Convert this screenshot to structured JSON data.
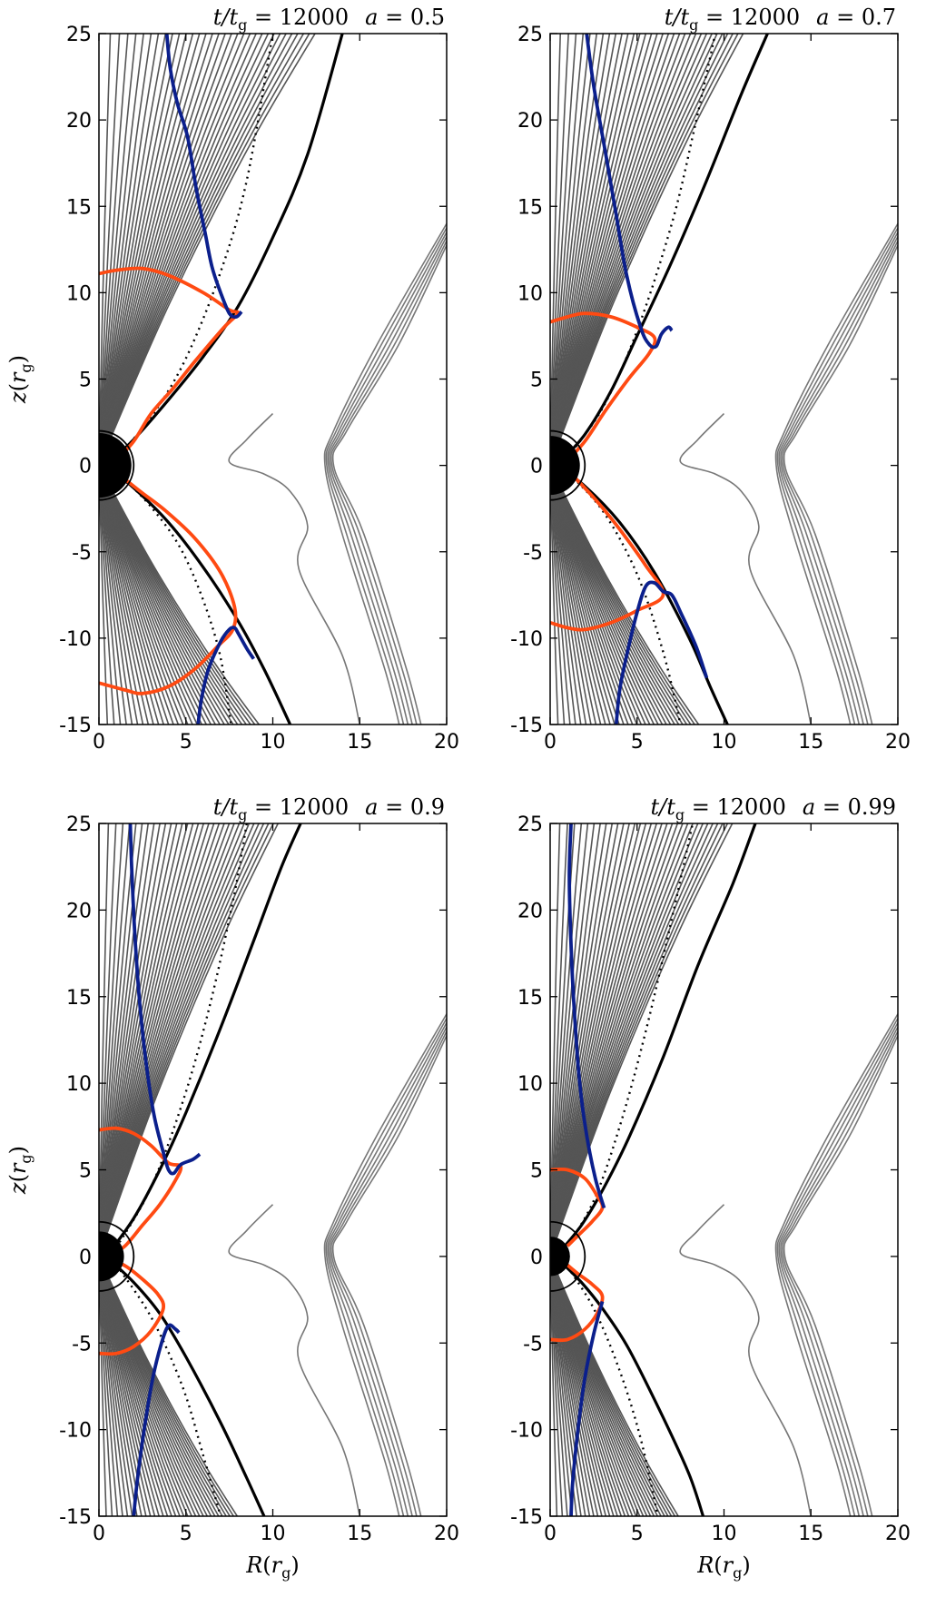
{
  "chart_data": [
    {
      "type": "line",
      "title": "t/t_g = 12000   a = 0.5",
      "time": "12000",
      "spin": "0.5",
      "xlabel": "R(r_g)",
      "ylabel": "z(r_g)",
      "xlim": [
        0,
        20
      ],
      "ylim": [
        -15,
        25
      ],
      "xticks": [
        0,
        5,
        10,
        15,
        20
      ],
      "yticks": [
        -15,
        -10,
        -5,
        0,
        5,
        10,
        15,
        20,
        25
      ],
      "grid": false,
      "horizon_radius": 1.87,
      "jet_boundary": {
        "upper": [
          [
            0.5,
            0.1
          ],
          [
            2,
            1.5
          ],
          [
            4,
            3.8
          ],
          [
            6,
            6.3
          ],
          [
            8,
            9.2
          ],
          [
            10,
            13.2
          ],
          [
            12,
            18
          ],
          [
            14,
            25
          ]
        ],
        "lower": [
          [
            0.5,
            -0.1
          ],
          [
            2,
            -1.3
          ],
          [
            4,
            -3.3
          ],
          [
            6,
            -5.9
          ],
          [
            8,
            -9
          ],
          [
            9.5,
            -11.8
          ],
          [
            11,
            -15
          ]
        ]
      },
      "dotted_line": {
        "upper": [
          [
            0.8,
            0.2
          ],
          [
            3,
            2.8
          ],
          [
            5,
            6.2
          ],
          [
            7,
            11.2
          ],
          [
            8.5,
            16.5
          ],
          [
            10,
            25
          ]
        ],
        "lower": [
          [
            0.8,
            -0.2
          ],
          [
            3,
            -2.4
          ],
          [
            5,
            -5.4
          ],
          [
            6.8,
            -10.3
          ],
          [
            7.6,
            -15
          ]
        ]
      },
      "red_curve_upper": [
        [
          0,
          11.1
        ],
        [
          1,
          11.3
        ],
        [
          2.5,
          11.4
        ],
        [
          4,
          11
        ],
        [
          6,
          10
        ],
        [
          7.5,
          9
        ],
        [
          8,
          8.8
        ],
        [
          7.2,
          8
        ],
        [
          5.5,
          6
        ],
        [
          4.3,
          4.5
        ],
        [
          3,
          3
        ],
        [
          2,
          1.4
        ],
        [
          1,
          0.3
        ]
      ],
      "red_curve_lower": [
        [
          0,
          -12.6
        ],
        [
          1.5,
          -13
        ],
        [
          2.5,
          -13.2
        ],
        [
          4,
          -12.8
        ],
        [
          5.5,
          -11.8
        ],
        [
          6.8,
          -10.5
        ],
        [
          7.7,
          -9.5
        ],
        [
          7.8,
          -8.2
        ],
        [
          7,
          -6.2
        ],
        [
          5.5,
          -4.2
        ],
        [
          3.8,
          -2.6
        ],
        [
          2.5,
          -1.6
        ],
        [
          1.5,
          -0.8
        ],
        [
          0.8,
          -0.2
        ]
      ],
      "blue_curve_upper": [
        [
          3.9,
          25
        ],
        [
          4.1,
          23
        ],
        [
          4.5,
          21
        ],
        [
          5.1,
          19
        ],
        [
          5.6,
          16
        ],
        [
          6.1,
          13.5
        ],
        [
          6.5,
          11.5
        ],
        [
          7,
          10
        ],
        [
          7.5,
          8.8
        ],
        [
          7.9,
          8.6
        ],
        [
          8.2,
          8.9
        ]
      ],
      "blue_curve_lower": [
        [
          5.7,
          -15
        ],
        [
          5.9,
          -13.5
        ],
        [
          6.3,
          -11.8
        ],
        [
          7,
          -10.2
        ],
        [
          7.5,
          -9.5
        ],
        [
          7.8,
          -9.4
        ],
        [
          8,
          -9.7
        ],
        [
          8.5,
          -10.6
        ],
        [
          8.9,
          -11.2
        ]
      ]
    },
    {
      "type": "line",
      "title": "t/t_g = 12000   a = 0.7",
      "time": "12000",
      "spin": "0.7",
      "xlabel": "R(r_g)",
      "ylabel": "z(r_g)",
      "xlim": [
        0,
        20
      ],
      "ylim": [
        -15,
        25
      ],
      "xticks": [
        0,
        5,
        10,
        15,
        20
      ],
      "yticks": [
        -15,
        -10,
        -5,
        0,
        5,
        10,
        15,
        20,
        25
      ],
      "grid": false,
      "horizon_radius": 1.71,
      "jet_boundary": {
        "upper": [
          [
            0.5,
            0.1
          ],
          [
            2,
            1.8
          ],
          [
            3.5,
            4.3
          ],
          [
            5,
            7.5
          ],
          [
            7,
            11.8
          ],
          [
            9,
            16.5
          ],
          [
            11,
            21.5
          ],
          [
            12.5,
            25
          ]
        ],
        "lower": [
          [
            0.5,
            -0.1
          ],
          [
            2,
            -1.2
          ],
          [
            4,
            -3.3
          ],
          [
            6,
            -6.2
          ],
          [
            8,
            -10
          ],
          [
            9.2,
            -12.8
          ],
          [
            10.2,
            -15
          ]
        ]
      },
      "dotted_line": {
        "upper": [
          [
            0.8,
            0.2
          ],
          [
            3,
            3.3
          ],
          [
            5,
            7.8
          ],
          [
            7,
            14
          ],
          [
            8.3,
            19.5
          ],
          [
            9.5,
            25
          ]
        ],
        "lower": [
          [
            0.8,
            -0.2
          ],
          [
            3,
            -2.6
          ],
          [
            5,
            -6.3
          ],
          [
            6.5,
            -10.8
          ],
          [
            7.5,
            -15
          ]
        ]
      },
      "red_curve_upper": [
        [
          0,
          8.3
        ],
        [
          1,
          8.6
        ],
        [
          2,
          8.8
        ],
        [
          3.5,
          8.6
        ],
        [
          5,
          8
        ],
        [
          6,
          7.4
        ],
        [
          5.7,
          6.5
        ],
        [
          4.5,
          5
        ],
        [
          3.2,
          3.2
        ],
        [
          2,
          1.4
        ],
        [
          1,
          0.3
        ]
      ],
      "red_curve_lower": [
        [
          0,
          -9.1
        ],
        [
          1,
          -9.4
        ],
        [
          2,
          -9.5
        ],
        [
          3.5,
          -9.1
        ],
        [
          5,
          -8.4
        ],
        [
          6.5,
          -7.5
        ],
        [
          5.5,
          -5.8
        ],
        [
          4,
          -3.7
        ],
        [
          2.8,
          -2.2
        ],
        [
          1.8,
          -1.1
        ],
        [
          1,
          -0.3
        ]
      ],
      "blue_curve_upper": [
        [
          2.1,
          25
        ],
        [
          2.5,
          22
        ],
        [
          3.2,
          18
        ],
        [
          3.8,
          14.5
        ],
        [
          4.4,
          11
        ],
        [
          5.2,
          8
        ],
        [
          5.7,
          7
        ],
        [
          6.1,
          6.9
        ],
        [
          6.4,
          7.6
        ],
        [
          6.8,
          8
        ],
        [
          7,
          7.8
        ]
      ],
      "blue_curve_lower": [
        [
          3.8,
          -15
        ],
        [
          4,
          -13
        ],
        [
          4.4,
          -11
        ],
        [
          5,
          -8.5
        ],
        [
          5.5,
          -7
        ],
        [
          6,
          -6.8
        ],
        [
          6.5,
          -7.3
        ],
        [
          7,
          -7.5
        ],
        [
          7.5,
          -8.5
        ],
        [
          8.4,
          -10.5
        ],
        [
          9,
          -12.3
        ]
      ]
    },
    {
      "type": "line",
      "title": "t/t_g = 12000   a = 0.9",
      "time": "12000",
      "spin": "0.9",
      "xlabel": "R(r_g)",
      "ylabel": "z(r_g)",
      "xlim": [
        0,
        20
      ],
      "ylim": [
        -15,
        25
      ],
      "xticks": [
        0,
        5,
        10,
        15,
        20
      ],
      "yticks": [
        -15,
        -10,
        -5,
        0,
        5,
        10,
        15,
        20,
        25
      ],
      "grid": false,
      "horizon_radius": 1.44,
      "jet_boundary": {
        "upper": [
          [
            0.5,
            0.1
          ],
          [
            2,
            2.2
          ],
          [
            3.5,
            5
          ],
          [
            5,
            8.3
          ],
          [
            7,
            13.2
          ],
          [
            9,
            18.5
          ],
          [
            10.5,
            22.5
          ],
          [
            11.6,
            25
          ]
        ],
        "lower": [
          [
            0.5,
            -0.1
          ],
          [
            2,
            -1.5
          ],
          [
            3.5,
            -3.3
          ],
          [
            5,
            -5.8
          ],
          [
            7,
            -9.6
          ],
          [
            8.5,
            -12.8
          ],
          [
            9.5,
            -15
          ]
        ]
      },
      "dotted_line": {
        "upper": [
          [
            0.8,
            0.2
          ],
          [
            3,
            4
          ],
          [
            5,
            9.5
          ],
          [
            6.5,
            15
          ],
          [
            7.8,
            21
          ],
          [
            8.5,
            25
          ]
        ],
        "lower": [
          [
            0.8,
            -0.2
          ],
          [
            3,
            -3.5
          ],
          [
            4.8,
            -7.5
          ],
          [
            6,
            -11.5
          ],
          [
            7,
            -15
          ]
        ]
      },
      "red_curve_upper": [
        [
          0,
          7.3
        ],
        [
          1,
          7.4
        ],
        [
          2,
          7.1
        ],
        [
          3,
          6.4
        ],
        [
          4,
          5.4
        ],
        [
          4.7,
          5.2
        ],
        [
          4.4,
          4.4
        ],
        [
          3.5,
          3
        ],
        [
          2.5,
          1.8
        ],
        [
          1.5,
          0.6
        ],
        [
          0.8,
          0.2
        ]
      ],
      "red_curve_lower": [
        [
          0,
          -5.6
        ],
        [
          1,
          -5.6
        ],
        [
          2,
          -5.2
        ],
        [
          3,
          -4.3
        ],
        [
          3.7,
          -3
        ],
        [
          3.4,
          -2.2
        ],
        [
          2.6,
          -1.4
        ],
        [
          1.6,
          -0.6
        ],
        [
          0.8,
          -0.2
        ]
      ],
      "blue_curve_upper": [
        [
          1.8,
          25
        ],
        [
          1.9,
          22
        ],
        [
          2.1,
          18
        ],
        [
          2.4,
          14
        ],
        [
          2.8,
          10.5
        ],
        [
          3.2,
          8
        ],
        [
          3.7,
          6
        ],
        [
          4,
          5
        ],
        [
          4.3,
          4.8
        ],
        [
          4.7,
          5.3
        ],
        [
          5.4,
          5.6
        ],
        [
          5.8,
          5.9
        ]
      ],
      "blue_curve_lower": [
        [
          2,
          -15
        ],
        [
          2.2,
          -13
        ],
        [
          2.6,
          -10
        ],
        [
          3.1,
          -7
        ],
        [
          3.6,
          -5
        ],
        [
          4,
          -4
        ],
        [
          4.4,
          -4.2
        ],
        [
          4.6,
          -4.4
        ]
      ]
    },
    {
      "type": "line",
      "title": "t/t_g = 12000   a = 0.99",
      "time": "12000",
      "spin": "0.99",
      "xlabel": "R(r_g)",
      "ylabel": "z(r_g)",
      "xlim": [
        0,
        20
      ],
      "ylim": [
        -15,
        25
      ],
      "xticks": [
        0,
        5,
        10,
        15,
        20
      ],
      "yticks": [
        -15,
        -10,
        -5,
        0,
        5,
        10,
        15,
        20,
        25
      ],
      "grid": false,
      "horizon_radius": 1.14,
      "jet_boundary": {
        "upper": [
          [
            0.5,
            0.2
          ],
          [
            1.8,
            1.8
          ],
          [
            3,
            3.8
          ],
          [
            4.5,
            6.8
          ],
          [
            6.5,
            11.5
          ],
          [
            8.5,
            16.8
          ],
          [
            10.5,
            21.5
          ],
          [
            11.8,
            25
          ]
        ],
        "lower": [
          [
            0.5,
            -0.2
          ],
          [
            1.8,
            -1.5
          ],
          [
            3,
            -3
          ],
          [
            4.5,
            -5.3
          ],
          [
            6.5,
            -9.3
          ],
          [
            8,
            -12.6
          ],
          [
            8.8,
            -15
          ]
        ]
      },
      "dotted_line": {
        "upper": [
          [
            0.8,
            0.3
          ],
          [
            2.5,
            3.2
          ],
          [
            4,
            7.5
          ],
          [
            5.5,
            13
          ],
          [
            7,
            19.5
          ],
          [
            8.2,
            25
          ]
        ],
        "lower": [
          [
            0.8,
            -0.3
          ],
          [
            2.5,
            -3
          ],
          [
            4,
            -6.6
          ],
          [
            5.2,
            -10.5
          ],
          [
            6.2,
            -15
          ]
        ]
      },
      "red_curve_upper": [
        [
          0,
          5
        ],
        [
          1,
          5
        ],
        [
          2,
          4.5
        ],
        [
          2.7,
          3.5
        ],
        [
          3,
          2.8
        ],
        [
          2.4,
          2
        ],
        [
          1.6,
          1.2
        ],
        [
          1,
          0.6
        ]
      ],
      "red_curve_lower": [
        [
          0,
          -4.8
        ],
        [
          1,
          -4.8
        ],
        [
          2,
          -4.2
        ],
        [
          2.7,
          -3.3
        ],
        [
          3,
          -2.3
        ],
        [
          2.4,
          -1.6
        ],
        [
          1.6,
          -1
        ],
        [
          1,
          -0.5
        ]
      ],
      "blue_curve_upper": [
        [
          1.2,
          25
        ],
        [
          1.1,
          22
        ],
        [
          1.2,
          18
        ],
        [
          1.4,
          14
        ],
        [
          1.7,
          10
        ],
        [
          2.1,
          7
        ],
        [
          2.6,
          4.5
        ],
        [
          3.1,
          2.8
        ]
      ],
      "blue_curve_lower": [
        [
          1.2,
          -15
        ],
        [
          1.3,
          -13
        ],
        [
          1.6,
          -10
        ],
        [
          2,
          -7
        ],
        [
          2.5,
          -4.5
        ],
        [
          3,
          -2.6
        ]
      ]
    }
  ]
}
